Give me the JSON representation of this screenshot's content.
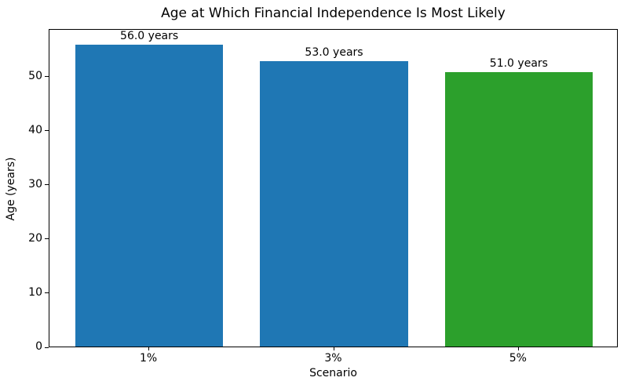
{
  "chart_data": {
    "type": "bar",
    "title": "Age at Which Financial Independence Is Most Likely",
    "xlabel": "Scenario",
    "ylabel": "Age (years)",
    "categories": [
      "1%",
      "3%",
      "5%"
    ],
    "values": [
      56.0,
      53.0,
      51.0
    ],
    "bar_labels": [
      "56.0 years",
      "53.0 years",
      "51.0 years"
    ],
    "bar_colors": [
      "#1f77b4",
      "#1f77b4",
      "#2ca02c"
    ],
    "yticks": [
      0,
      10,
      20,
      30,
      40,
      50
    ],
    "ylim": [
      0,
      58.8
    ],
    "bar_width_ratio": 0.8,
    "grid": false,
    "legend_position": "none"
  },
  "colors": {
    "background": "#ffffff",
    "axis": "#000000",
    "text": "#000000",
    "bar_blue": "#1f77b4",
    "bar_green": "#2ca02c"
  }
}
